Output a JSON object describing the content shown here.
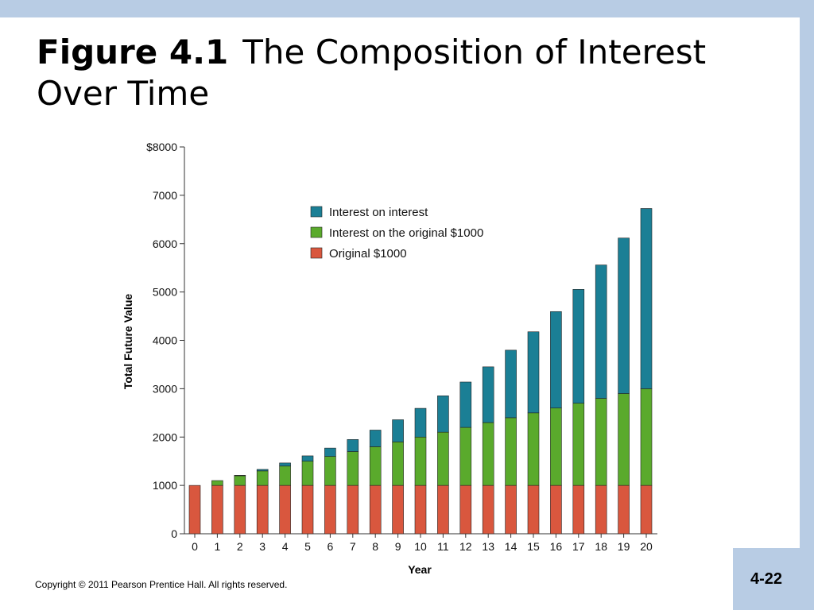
{
  "slide": {
    "title_fig": "Figure 4.1",
    "title_text": "The Composition of Interest Over Time",
    "copyright": "Copyright © 2011 Pearson Prentice Hall. All rights reserved.",
    "page_number": "4-22"
  },
  "colors": {
    "background_band": "#b8cce4",
    "interest_on_interest": "#1b7f95",
    "interest_on_original": "#5aaa2c",
    "original": "#d9573e"
  },
  "chart_data": {
    "type": "bar",
    "stacked": true,
    "xlabel": "Year",
    "ylabel": "Total Future Value",
    "ylim": [
      0,
      8000
    ],
    "y_ticks": [
      0,
      1000,
      2000,
      3000,
      4000,
      5000,
      6000,
      7000,
      8000
    ],
    "y_tick_labels": [
      "0",
      "1000",
      "2000",
      "3000",
      "4000",
      "5000",
      "6000",
      "7000",
      "$8000"
    ],
    "categories": [
      "0",
      "1",
      "2",
      "3",
      "4",
      "5",
      "6",
      "7",
      "8",
      "9",
      "10",
      "11",
      "12",
      "13",
      "14",
      "15",
      "16",
      "17",
      "18",
      "19",
      "20"
    ],
    "legend_position": "top-center",
    "series": [
      {
        "name": "Original $1000",
        "color_key": "original",
        "values": [
          1000,
          1000,
          1000,
          1000,
          1000,
          1000,
          1000,
          1000,
          1000,
          1000,
          1000,
          1000,
          1000,
          1000,
          1000,
          1000,
          1000,
          1000,
          1000,
          1000,
          1000
        ]
      },
      {
        "name": "Interest on the original $1000",
        "color_key": "interest_on_original",
        "values": [
          0,
          100,
          200,
          300,
          400,
          500,
          600,
          700,
          800,
          900,
          1000,
          1100,
          1200,
          1300,
          1400,
          1500,
          1600,
          1700,
          1800,
          1900,
          2000
        ]
      },
      {
        "name": "Interest on interest",
        "color_key": "interest_on_interest",
        "values": [
          0,
          0,
          10,
          31,
          64,
          111,
          172,
          249,
          344,
          458,
          594,
          753,
          938,
          1152,
          1397,
          1677,
          1995,
          2354,
          2759,
          3216,
          3727
        ]
      }
    ],
    "legend_order": [
      "Interest on interest",
      "Interest on the original $1000",
      "Original $1000"
    ]
  }
}
